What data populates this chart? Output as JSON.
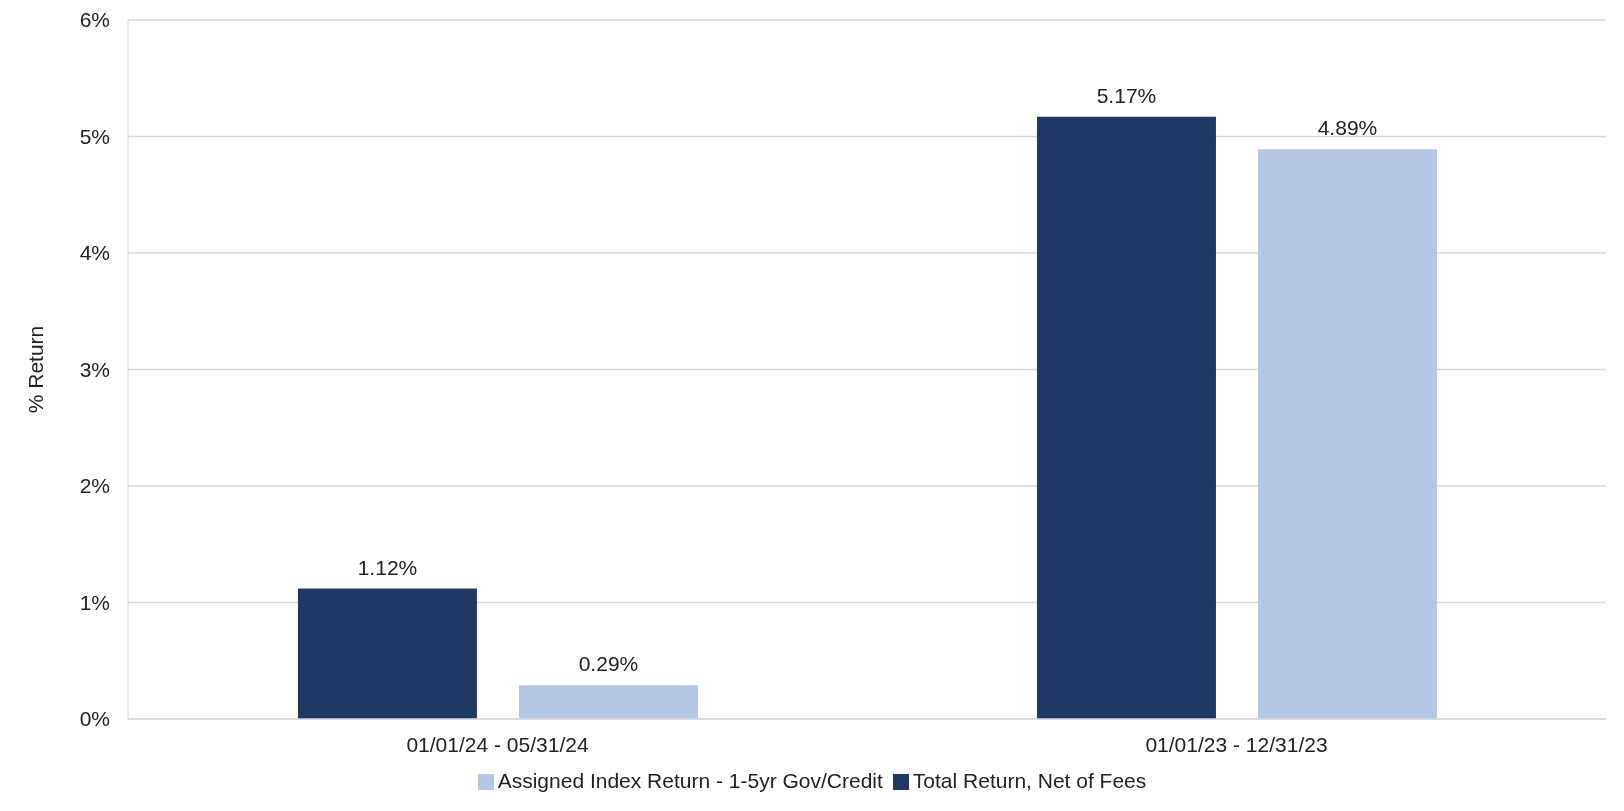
{
  "chart_data": {
    "type": "bar",
    "ylabel": "% Return",
    "categories": [
      "01/01/24 - 05/31/24",
      "01/01/23 - 12/31/23"
    ],
    "series": [
      {
        "name": "Total Return, Net of Fees",
        "color": "#203864",
        "values": [
          1.12,
          5.17
        ],
        "value_labels": [
          "1.12%",
          "5.17%"
        ]
      },
      {
        "name": "Assigned Index Return - 1-5yr Gov/Credit",
        "color": "#b4c7e7",
        "values": [
          0.29,
          4.89
        ],
        "value_labels": [
          "0.29%",
          "4.89%"
        ]
      }
    ],
    "ylim": [
      0,
      6
    ],
    "yticks": [
      {
        "value": 0,
        "label": "0%"
      },
      {
        "value": 1,
        "label": "1%"
      },
      {
        "value": 2,
        "label": "2%"
      },
      {
        "value": 3,
        "label": "3%"
      },
      {
        "value": 4,
        "label": "4%"
      },
      {
        "value": 5,
        "label": "5%"
      },
      {
        "value": 6,
        "label": "6%"
      }
    ],
    "grid": "y",
    "legend": "bottom"
  }
}
